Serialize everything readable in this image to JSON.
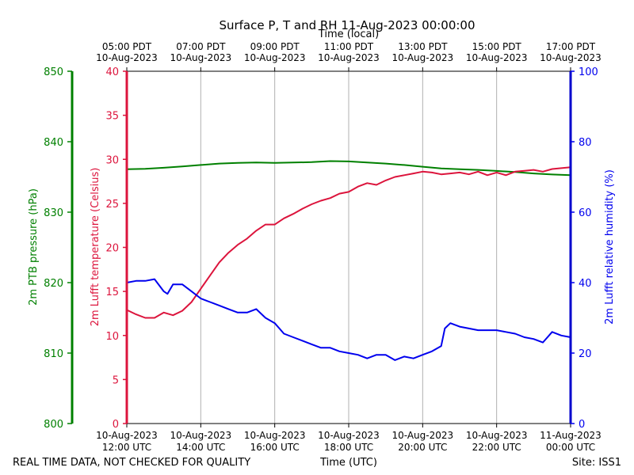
{
  "chart_data": {
    "type": "line",
    "title": "Surface P, T and RH 11-Aug-2023 00:00:00",
    "top_axis_label": "Time (local)",
    "xlabel": "Time (UTC)",
    "footer_left": "REAL TIME DATA, NOT CHECKED FOR QUALITY",
    "footer_right": "Site: ISS1",
    "x_range_hours_utc": [
      12,
      24
    ],
    "grid": "vertical",
    "x_ticks": [
      {
        "hour": 12,
        "date": "10-Aug-2023",
        "utc": "12:00 UTC",
        "local_time": "05:00 PDT",
        "local_date": "10-Aug-2023"
      },
      {
        "hour": 14,
        "date": "10-Aug-2023",
        "utc": "14:00 UTC",
        "local_time": "07:00 PDT",
        "local_date": "10-Aug-2023"
      },
      {
        "hour": 16,
        "date": "10-Aug-2023",
        "utc": "16:00 UTC",
        "local_time": "09:00 PDT",
        "local_date": "10-Aug-2023"
      },
      {
        "hour": 18,
        "date": "10-Aug-2023",
        "utc": "18:00 UTC",
        "local_time": "11:00 PDT",
        "local_date": "10-Aug-2023"
      },
      {
        "hour": 20,
        "date": "10-Aug-2023",
        "utc": "20:00 UTC",
        "local_time": "13:00 PDT",
        "local_date": "10-Aug-2023"
      },
      {
        "hour": 22,
        "date": "10-Aug-2023",
        "utc": "22:00 UTC",
        "local_time": "15:00 PDT",
        "local_date": "10-Aug-2023"
      },
      {
        "hour": 24,
        "date": "11-Aug-2023",
        "utc": "00:00 UTC",
        "local_time": "17:00 PDT",
        "local_date": "10-Aug-2023"
      }
    ],
    "axes": {
      "pressure": {
        "label": "2m PTB pressure (hPa)",
        "range": [
          800,
          850
        ],
        "ticks": [
          800,
          810,
          820,
          830,
          840,
          850
        ],
        "color": "#008000"
      },
      "temperature": {
        "label": "2m Lufft temperature (Celsius)",
        "range": [
          0,
          40
        ],
        "ticks": [
          0,
          5,
          10,
          15,
          20,
          25,
          30,
          35,
          40
        ],
        "color": "#dc143c"
      },
      "humidity": {
        "label": "2m Lufft relative humidity (%)",
        "range": [
          0,
          100
        ],
        "ticks": [
          0,
          20,
          40,
          60,
          80,
          100
        ],
        "color": "#0000ee"
      }
    },
    "series": [
      {
        "key": "pressure",
        "color": "#008000",
        "x": [
          12.0,
          12.5,
          13.0,
          13.5,
          14.0,
          14.5,
          15.0,
          15.5,
          16.0,
          16.5,
          17.0,
          17.5,
          18.0,
          18.5,
          19.0,
          19.5,
          20.0,
          20.5,
          21.0,
          21.5,
          22.0,
          22.5,
          23.0,
          23.5,
          24.0
        ],
        "y": [
          836.1,
          836.15,
          836.3,
          836.5,
          836.7,
          836.9,
          837.0,
          837.05,
          837.0,
          837.05,
          837.1,
          837.25,
          837.2,
          837.05,
          836.9,
          836.7,
          836.45,
          836.2,
          836.1,
          836.0,
          835.85,
          835.7,
          835.5,
          835.35,
          835.25
        ]
      },
      {
        "key": "temperature",
        "color": "#dc143c",
        "x": [
          12.0,
          12.25,
          12.5,
          12.75,
          13.0,
          13.25,
          13.5,
          13.75,
          14.0,
          14.25,
          14.5,
          14.75,
          15.0,
          15.25,
          15.5,
          15.75,
          16.0,
          16.25,
          16.5,
          16.75,
          17.0,
          17.25,
          17.5,
          17.75,
          18.0,
          18.25,
          18.5,
          18.75,
          19.0,
          19.25,
          19.5,
          19.75,
          20.0,
          20.25,
          20.5,
          20.75,
          21.0,
          21.25,
          21.5,
          21.75,
          22.0,
          22.25,
          22.5,
          22.75,
          23.0,
          23.25,
          23.5,
          23.75,
          24.0
        ],
        "y": [
          12.9,
          12.4,
          12.0,
          12.0,
          12.6,
          12.3,
          12.8,
          13.8,
          15.3,
          16.8,
          18.3,
          19.4,
          20.3,
          21.0,
          21.9,
          22.6,
          22.6,
          23.3,
          23.8,
          24.4,
          24.9,
          25.3,
          25.6,
          26.1,
          26.3,
          26.9,
          27.3,
          27.1,
          27.6,
          28.0,
          28.2,
          28.4,
          28.6,
          28.5,
          28.3,
          28.4,
          28.5,
          28.3,
          28.6,
          28.2,
          28.5,
          28.2,
          28.6,
          28.7,
          28.8,
          28.6,
          28.9,
          29.0,
          29.1
        ]
      },
      {
        "key": "humidity",
        "color": "#0000ee",
        "x": [
          12.0,
          12.25,
          12.5,
          12.75,
          13.0,
          13.1,
          13.25,
          13.5,
          13.75,
          14.0,
          14.25,
          14.5,
          14.75,
          15.0,
          15.25,
          15.5,
          15.75,
          16.0,
          16.25,
          16.5,
          16.75,
          17.0,
          17.25,
          17.5,
          17.75,
          18.0,
          18.25,
          18.5,
          18.75,
          19.0,
          19.25,
          19.5,
          19.75,
          20.0,
          20.25,
          20.5,
          20.6,
          20.75,
          21.0,
          21.25,
          21.5,
          21.75,
          22.0,
          22.25,
          22.5,
          22.75,
          23.0,
          23.25,
          23.5,
          23.75,
          24.0
        ],
        "y": [
          40,
          40.5,
          40.5,
          41,
          37.5,
          36.8,
          39.5,
          39.5,
          37.5,
          35.5,
          34.5,
          33.5,
          32.5,
          31.5,
          31.5,
          32.5,
          30,
          28.5,
          25.5,
          24.5,
          23.5,
          22.5,
          21.5,
          21.5,
          20.5,
          20,
          19.5,
          18.5,
          19.5,
          19.5,
          18,
          19,
          18.5,
          19.5,
          20.5,
          22,
          27,
          28.5,
          27.5,
          27,
          26.5,
          26.5,
          26.5,
          26,
          25.5,
          24.5,
          24,
          23,
          26,
          25,
          24.5
        ]
      }
    ]
  }
}
